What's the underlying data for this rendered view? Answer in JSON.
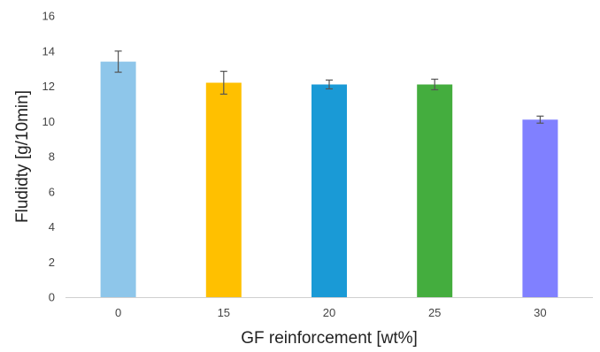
{
  "chart_data": {
    "type": "bar",
    "title": "",
    "xlabel": "GF reinforcement  [wt%]",
    "ylabel": "Fludidty [g/10min]",
    "categories": [
      "0",
      "15",
      "20",
      "25",
      "30"
    ],
    "values": [
      13.4,
      12.2,
      12.1,
      12.1,
      10.1
    ],
    "errors": [
      0.6,
      0.65,
      0.25,
      0.3,
      0.2
    ],
    "colors": [
      "#8EC6EA",
      "#FFC000",
      "#1A9AD6",
      "#44AD3E",
      "#8080FF"
    ],
    "ylim": [
      0,
      16
    ],
    "yticks": [
      "0",
      "2",
      "4",
      "6",
      "8",
      "10",
      "12",
      "14",
      "16"
    ],
    "grid": false,
    "legend": "none"
  }
}
